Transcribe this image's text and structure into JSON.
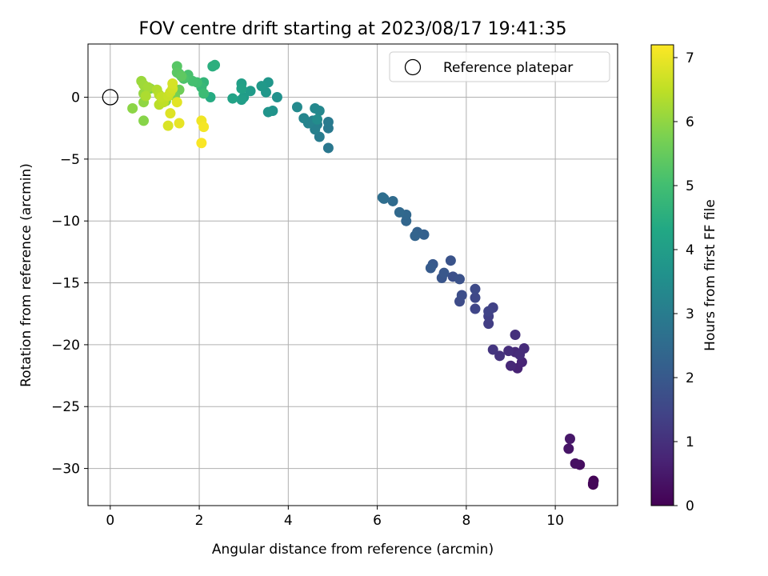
{
  "chart_data": {
    "type": "scatter",
    "title": "FOV centre drift starting at 2023/08/17 19:41:35",
    "xlabel": "Angular distance from reference (arcmin)",
    "ylabel": "Rotation from reference (arcmin)",
    "xlim": [
      -0.5,
      11.4
    ],
    "ylim": [
      -33,
      4.3
    ],
    "xticks": [
      "0",
      "2",
      "4",
      "6",
      "8",
      "10"
    ],
    "yticks": [
      "0",
      "−5",
      "−10",
      "−15",
      "−20",
      "−25",
      "−30"
    ],
    "grid": true,
    "legend": {
      "position": "top-right",
      "entries": [
        "Reference platepar"
      ]
    },
    "reference_point": {
      "x": 0,
      "y": 0
    },
    "colorbar": {
      "label": "Hours from first FF file",
      "range": [
        0,
        7.2
      ],
      "ticks": [
        "0",
        "1",
        "2",
        "3",
        "4",
        "5",
        "6",
        "7"
      ],
      "colormap": "viridis"
    },
    "series": [
      {
        "points": [
          [
            10.85,
            -31.3,
            0.0
          ],
          [
            10.86,
            -31.0,
            0.05
          ],
          [
            10.85,
            -31.2,
            0.1
          ],
          [
            10.55,
            -29.7,
            0.25
          ],
          [
            10.45,
            -29.6,
            0.3
          ],
          [
            10.3,
            -28.4,
            0.4
          ],
          [
            10.33,
            -27.6,
            0.45
          ],
          [
            9.15,
            -21.9,
            0.7
          ],
          [
            9.25,
            -21.4,
            0.75
          ],
          [
            9.0,
            -21.7,
            0.8
          ],
          [
            9.1,
            -20.6,
            0.85
          ],
          [
            9.3,
            -20.3,
            0.9
          ],
          [
            9.2,
            -20.8,
            0.92
          ],
          [
            8.95,
            -20.5,
            0.95
          ],
          [
            9.1,
            -19.2,
            1.0
          ],
          [
            8.75,
            -20.9,
            1.05
          ],
          [
            8.6,
            -20.4,
            1.1
          ],
          [
            8.5,
            -18.3,
            1.3
          ],
          [
            8.5,
            -17.7,
            1.35
          ],
          [
            8.6,
            -17.0,
            1.4
          ],
          [
            8.5,
            -17.3,
            1.45
          ],
          [
            8.2,
            -17.1,
            1.5
          ],
          [
            8.2,
            -16.2,
            1.55
          ],
          [
            8.2,
            -15.5,
            1.6
          ],
          [
            7.85,
            -16.5,
            1.65
          ],
          [
            7.9,
            -16.0,
            1.7
          ],
          [
            7.7,
            -14.5,
            1.75
          ],
          [
            7.85,
            -14.7,
            1.8
          ],
          [
            7.65,
            -13.2,
            1.85
          ],
          [
            7.45,
            -14.6,
            1.9
          ],
          [
            7.5,
            -14.2,
            1.95
          ],
          [
            7.25,
            -13.5,
            2.0
          ],
          [
            7.2,
            -13.8,
            2.05
          ],
          [
            7.05,
            -11.1,
            2.2
          ],
          [
            6.9,
            -10.9,
            2.25
          ],
          [
            6.85,
            -11.2,
            2.3
          ],
          [
            6.65,
            -10.0,
            2.35
          ],
          [
            6.65,
            -9.5,
            2.4
          ],
          [
            6.5,
            -9.3,
            2.45
          ],
          [
            6.35,
            -8.4,
            2.5
          ],
          [
            6.15,
            -8.2,
            2.55
          ],
          [
            6.12,
            -8.1,
            2.6
          ],
          [
            4.9,
            -4.1,
            2.85
          ],
          [
            4.9,
            -2.5,
            2.9
          ],
          [
            4.9,
            -2.0,
            2.95
          ],
          [
            4.7,
            -3.2,
            3.0
          ],
          [
            4.65,
            -2.2,
            3.05
          ],
          [
            4.6,
            -2.6,
            3.1
          ],
          [
            4.55,
            -1.9,
            3.15
          ],
          [
            4.45,
            -2.1,
            3.2
          ],
          [
            4.35,
            -1.7,
            3.25
          ],
          [
            4.7,
            -1.1,
            3.3
          ],
          [
            4.6,
            -0.9,
            3.35
          ],
          [
            4.2,
            -0.8,
            3.4
          ],
          [
            4.65,
            -1.8,
            3.45
          ],
          [
            3.75,
            0.0,
            3.6
          ],
          [
            3.65,
            -1.1,
            3.65
          ],
          [
            3.55,
            -1.2,
            3.7
          ],
          [
            3.55,
            1.2,
            3.75
          ],
          [
            3.5,
            0.4,
            3.8
          ],
          [
            3.4,
            0.9,
            3.85
          ],
          [
            3.15,
            0.5,
            3.9
          ],
          [
            3.0,
            0.0,
            3.95
          ],
          [
            2.95,
            -0.2,
            4.0
          ],
          [
            2.95,
            1.1,
            4.05
          ],
          [
            2.95,
            0.7,
            4.1
          ],
          [
            2.75,
            -0.1,
            4.15
          ],
          [
            2.25,
            0.0,
            4.4
          ],
          [
            2.3,
            2.5,
            4.5
          ],
          [
            2.35,
            2.6,
            4.55
          ],
          [
            2.1,
            1.2,
            4.7
          ],
          [
            2.05,
            0.8,
            4.8
          ],
          [
            2.1,
            0.3,
            4.9
          ],
          [
            1.95,
            1.2,
            5.0
          ],
          [
            1.85,
            1.3,
            5.05
          ],
          [
            1.75,
            1.8,
            5.1
          ],
          [
            1.65,
            1.5,
            5.15
          ],
          [
            1.55,
            1.9,
            5.2
          ],
          [
            1.5,
            2.5,
            5.3
          ],
          [
            1.5,
            2.0,
            5.35
          ],
          [
            1.6,
            1.7,
            5.4
          ],
          [
            1.55,
            0.6,
            5.6
          ],
          [
            1.45,
            0.1,
            5.7
          ],
          [
            1.35,
            0.3,
            5.75
          ],
          [
            1.25,
            -0.3,
            5.8
          ],
          [
            0.9,
            0.7,
            5.85
          ],
          [
            0.75,
            -1.9,
            5.9
          ],
          [
            0.5,
            -0.9,
            5.95
          ],
          [
            0.75,
            -0.4,
            6.0
          ],
          [
            0.75,
            0.3,
            6.05
          ],
          [
            0.7,
            1.3,
            6.1
          ],
          [
            0.75,
            1.0,
            6.15
          ],
          [
            0.85,
            0.8,
            6.2
          ],
          [
            0.8,
            0.1,
            6.3
          ],
          [
            1.05,
            0.6,
            6.35
          ],
          [
            1.1,
            0.2,
            6.4
          ],
          [
            1.1,
            -0.6,
            6.45
          ],
          [
            1.2,
            -0.4,
            6.5
          ],
          [
            1.15,
            0.0,
            6.55
          ],
          [
            1.3,
            0.1,
            6.6
          ],
          [
            1.35,
            0.4,
            6.65
          ],
          [
            1.4,
            0.7,
            6.7
          ],
          [
            1.4,
            1.1,
            6.75
          ],
          [
            1.3,
            -2.3,
            6.8
          ],
          [
            1.35,
            -1.3,
            6.85
          ],
          [
            1.5,
            -0.4,
            6.9
          ],
          [
            1.55,
            -2.1,
            6.95
          ],
          [
            2.05,
            -1.9,
            7.05
          ],
          [
            2.1,
            -2.4,
            7.1
          ],
          [
            2.05,
            -3.7,
            7.15
          ]
        ]
      }
    ]
  }
}
